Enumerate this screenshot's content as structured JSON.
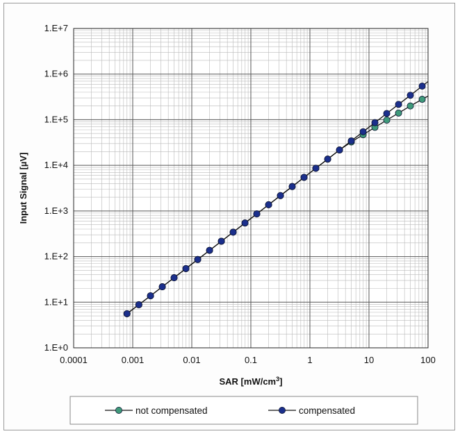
{
  "chart_data": {
    "type": "line",
    "title": "",
    "xlabel": "SAR [mW/cm³]",
    "ylabel": "Input Signal  [µV]",
    "x_scale": "log",
    "y_scale": "log",
    "xlim": [
      0.0001,
      100
    ],
    "ylim": [
      1,
      10000000
    ],
    "x_tick_labels": [
      "0.0001",
      "0.001",
      "0.01",
      "0.1",
      "1",
      "10",
      "100"
    ],
    "y_tick_labels": [
      "1.E+0",
      "1.E+1",
      "1.E+2",
      "1.E+3",
      "1.E+4",
      "1.E+5",
      "1.E+6",
      "1.E+7"
    ],
    "grid": true,
    "legend_position": "bottom",
    "series": [
      {
        "name": "not compensated",
        "color": "#3f9a7a",
        "x": [
          0.0008,
          0.00127,
          0.002,
          0.00317,
          0.00502,
          0.00796,
          0.0126,
          0.02,
          0.0317,
          0.0502,
          0.0796,
          0.126,
          0.2,
          0.317,
          0.502,
          0.796,
          1.26,
          2,
          3.17,
          5.02,
          7.96,
          12.6,
          20,
          31.7,
          50.2,
          79.6
        ],
        "y": [
          5.6,
          8.8,
          13.8,
          21.8,
          34.4,
          54.6,
          86.2,
          137,
          217,
          343,
          545,
          862,
          1370,
          2170,
          3430,
          5450,
          8620,
          13700,
          21700,
          32500,
          47000,
          68000,
          98000,
          140000,
          200000,
          280000
        ]
      },
      {
        "name": "compensated",
        "color": "#1b2f8c",
        "x": [
          0.0008,
          0.00127,
          0.002,
          0.00317,
          0.00502,
          0.00796,
          0.0126,
          0.02,
          0.0317,
          0.0502,
          0.0796,
          0.126,
          0.2,
          0.317,
          0.502,
          0.796,
          1.26,
          2,
          3.17,
          5.02,
          7.96,
          12.6,
          20,
          31.7,
          50.2,
          79.6
        ],
        "y": [
          5.6,
          8.8,
          13.8,
          21.8,
          34.4,
          54.6,
          86.2,
          137,
          217,
          343,
          545,
          862,
          1370,
          2170,
          3430,
          5450,
          8620,
          13700,
          21700,
          34400,
          54600,
          86200,
          137000,
          217000,
          343000,
          545000
        ]
      }
    ]
  }
}
